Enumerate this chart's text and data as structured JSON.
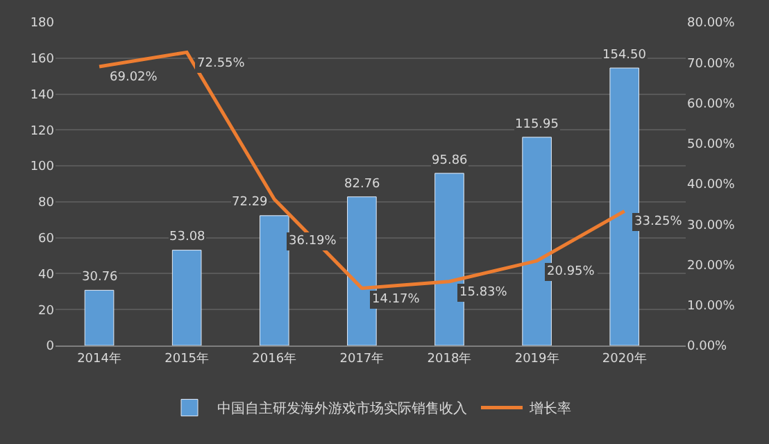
{
  "chart_data": {
    "type": "bar",
    "categories": [
      "2014年",
      "2015年",
      "2016年",
      "2017年",
      "2018年",
      "2019年",
      "2020年"
    ],
    "series": [
      {
        "name": "中国自主研发海外游戏市场实际销售收入",
        "color": "#5b9bd5",
        "values": [
          30.76,
          53.08,
          72.29,
          82.76,
          95.86,
          115.95,
          154.5
        ],
        "value_labels": [
          "30.76",
          "53.08",
          "72.29",
          "82.76",
          "95.86",
          "115.95",
          "154.50"
        ]
      },
      {
        "name": "增长率",
        "color": "#ed7d31",
        "type": "line",
        "axis": "y2",
        "values": [
          69.02,
          72.55,
          36.19,
          14.17,
          15.83,
          20.95,
          33.25
        ],
        "value_labels": [
          "69.02%",
          "72.55%",
          "36.19%",
          "14.17%",
          "15.83%",
          "20.95%",
          "33.25%"
        ]
      }
    ],
    "ylim": [
      0,
      180
    ],
    "yticks": [
      0,
      20,
      40,
      60,
      80,
      100,
      120,
      140,
      160,
      180
    ],
    "y2lim": [
      0,
      80
    ],
    "y2ticks": [
      {
        "value": 0,
        "label": "0.00%"
      },
      {
        "value": 10,
        "label": "10.00%"
      },
      {
        "value": 20,
        "label": "20.00%"
      },
      {
        "value": 30,
        "label": "30.00%"
      },
      {
        "value": 40,
        "label": "40.00%"
      },
      {
        "value": 50,
        "label": "50.00%"
      },
      {
        "value": 60,
        "label": "60.00%"
      },
      {
        "value": 70,
        "label": "70.00%"
      },
      {
        "value": 80,
        "label": "80.00%"
      }
    ],
    "grid": "y",
    "legend": "bottom",
    "marker": "none",
    "line_style": "solid"
  }
}
